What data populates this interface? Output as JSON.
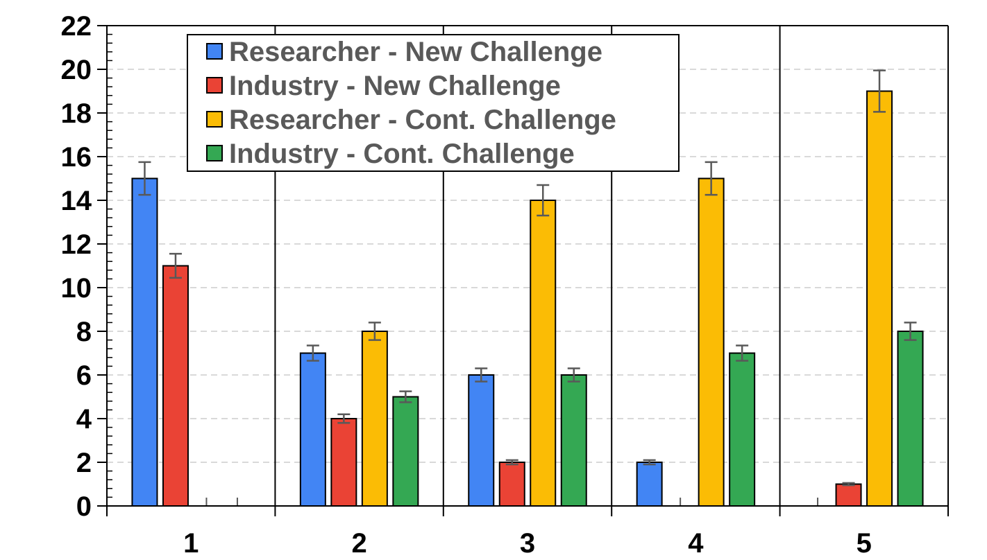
{
  "chart_data": {
    "type": "bar",
    "title": "",
    "xlabel": "",
    "ylabel": "",
    "categories": [
      "1",
      "2",
      "3",
      "4",
      "5"
    ],
    "ylim": [
      0,
      22
    ],
    "yticks": [
      0,
      2,
      4,
      6,
      8,
      10,
      12,
      14,
      16,
      18,
      20,
      22
    ],
    "grid": "horizontal dashed",
    "legend_position": "top-left",
    "series": [
      {
        "name": "Researcher - New Challenge",
        "color": "#4285F4",
        "values": [
          15,
          7,
          6,
          2,
          0
        ],
        "errors": [
          0.75,
          0.35,
          0.3,
          0.1,
          0
        ]
      },
      {
        "name": "Industry - New Challenge",
        "color": "#EA4335",
        "values": [
          11,
          4,
          2,
          0,
          1
        ],
        "errors": [
          0.55,
          0.2,
          0.1,
          0,
          0.05
        ]
      },
      {
        "name": "Researcher - Cont. Challenge",
        "color": "#FBBC05",
        "values": [
          0,
          8,
          14,
          15,
          19
        ],
        "errors": [
          0,
          0.4,
          0.7,
          0.75,
          0.95
        ]
      },
      {
        "name": "Industry - Cont. Challenge",
        "color": "#34A853",
        "values": [
          0,
          5,
          6,
          7,
          8
        ],
        "errors": [
          0,
          0.25,
          0.3,
          0.35,
          0.4
        ]
      }
    ]
  }
}
